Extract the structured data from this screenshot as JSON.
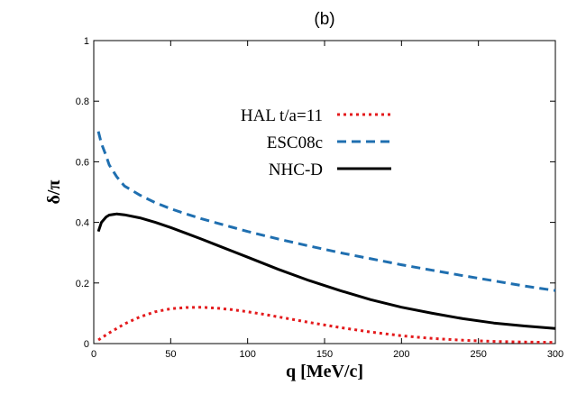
{
  "chart_data": {
    "type": "line",
    "panel_label": "(b)",
    "xlabel": "q [MeV/c]",
    "ylabel": "δ/π",
    "xlim": [
      0,
      300
    ],
    "ylim": [
      0,
      1
    ],
    "x_ticks": [
      0,
      50,
      100,
      150,
      200,
      250,
      300
    ],
    "y_ticks": [
      0,
      0.2,
      0.4,
      0.6,
      0.8,
      1
    ],
    "x_tick_labels": [
      "0",
      "50",
      "100",
      "150",
      "200",
      "250",
      "300"
    ],
    "y_tick_labels": [
      "0",
      "0.2",
      "0.4",
      "0.6",
      "0.8",
      "1"
    ],
    "grid": false,
    "legend_position": "center-top",
    "series": [
      {
        "name": "HAL t/a=11",
        "color": "#e41a1c",
        "style": "dotted",
        "x": [
          3,
          10,
          20,
          30,
          40,
          50,
          60,
          70,
          80,
          90,
          100,
          110,
          120,
          140,
          160,
          180,
          200,
          220,
          240,
          260,
          280,
          300
        ],
        "y": [
          0.012,
          0.035,
          0.065,
          0.088,
          0.105,
          0.115,
          0.119,
          0.12,
          0.117,
          0.112,
          0.105,
          0.097,
          0.088,
          0.07,
          0.053,
          0.038,
          0.026,
          0.017,
          0.011,
          0.007,
          0.005,
          0.004
        ]
      },
      {
        "name": "ESC08c",
        "color": "#1f6fb0",
        "style": "dashed",
        "x": [
          3,
          5,
          8,
          10,
          15,
          20,
          30,
          40,
          50,
          60,
          70,
          80,
          90,
          100,
          120,
          140,
          160,
          180,
          200,
          220,
          240,
          260,
          280,
          300
        ],
        "y": [
          0.7,
          0.66,
          0.62,
          0.59,
          0.55,
          0.52,
          0.49,
          0.465,
          0.445,
          0.428,
          0.412,
          0.398,
          0.384,
          0.37,
          0.345,
          0.322,
          0.3,
          0.28,
          0.26,
          0.242,
          0.224,
          0.207,
          0.19,
          0.175
        ]
      },
      {
        "name": "NHC-D",
        "color": "#000000",
        "style": "solid",
        "x": [
          3,
          5,
          8,
          10,
          15,
          20,
          30,
          40,
          50,
          60,
          70,
          80,
          90,
          100,
          120,
          140,
          160,
          180,
          200,
          220,
          240,
          260,
          280,
          300
        ],
        "y": [
          0.37,
          0.4,
          0.418,
          0.424,
          0.428,
          0.425,
          0.415,
          0.4,
          0.383,
          0.364,
          0.345,
          0.325,
          0.305,
          0.285,
          0.245,
          0.208,
          0.175,
          0.145,
          0.12,
          0.1,
          0.082,
          0.068,
          0.058,
          0.05
        ]
      }
    ]
  }
}
